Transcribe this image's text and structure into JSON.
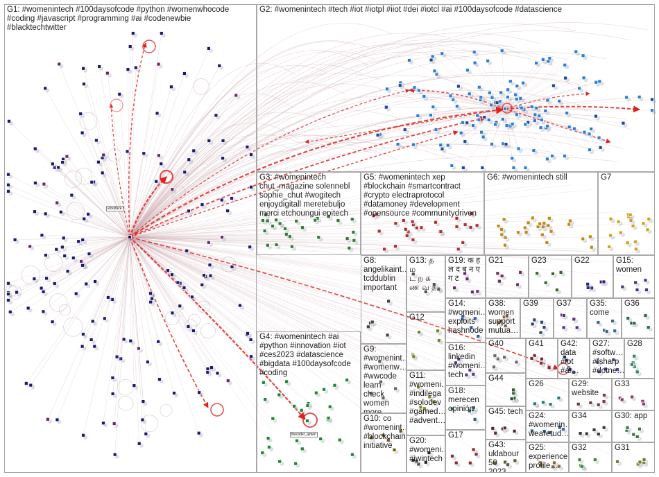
{
  "groups": [
    {
      "id": "G1",
      "label": "G1: #womenintech #100daysofcode #python #womenwhocode\n#coding #javascript #programming #ai #codenewbie\n#blacktechtwitter",
      "color": "#1a1a6e"
    },
    {
      "id": "G2",
      "label": "G2: #womenintech #tech #iot #iotpl #iiot #dei #iotcl #ai #100daysofcode #datascience",
      "color": "#2a7fd4"
    },
    {
      "id": "G3",
      "label": "G3: #womenintech\nchut_magazine solennebl\nsophie_chut #wogitech\nenjoydigitall meretebuljo\nmerci etchoungui epitech",
      "color": "#2e7d32"
    },
    {
      "id": "G4",
      "label": "G4: #womenintech #ai\n#python #innovation #iot\n#ces2023 #datascience\n#bigdata #100daysofcode\n#coding",
      "color": "#1b8a2e"
    },
    {
      "id": "G5",
      "label": "G5: #womenintech xep\n#blockchain #smartcontract\n#crypto electraprotocol\n#datamoney #development\n#opensource #communitydriven",
      "color": "#b03030"
    },
    {
      "id": "G6",
      "label": "G6: #womenintech still",
      "color": "#c08a10"
    },
    {
      "id": "G7",
      "label": "G7",
      "color": "#d4a017"
    },
    {
      "id": "G8",
      "label": "G8:\nangelikaint…\ntcddublin\nimportant",
      "color": "#444444"
    },
    {
      "id": "G9",
      "label": "G9:\n#womenint…\n#womenw…\n#wwcode\nlearn check\nwomen\nmore 2023…",
      "color": "#666666"
    },
    {
      "id": "G10",
      "label": "G10: co\n#womenint…\n#blockchain\ninitiative",
      "color": "#7a5a10"
    },
    {
      "id": "G11",
      "label": "G11:\n#womeni…\n#indilega\n#solodev\n#gamed…\n#advent…",
      "color": "#8a8a20"
    },
    {
      "id": "G12",
      "label": "G12",
      "color": "#6a8a20"
    },
    {
      "id": "G13",
      "label": "G13: த ம\nட ற க\nண வ த",
      "color": "#555555"
    },
    {
      "id": "G14",
      "label": "G14:\n#womeni…\nexploits\nhashnode",
      "color": "#2a5a9a"
    },
    {
      "id": "G15",
      "label": "G15:\nwomen",
      "color": "#3a3a8a"
    },
    {
      "id": "G16",
      "label": "G16:\nlinkedin\n#womeni…\ntech",
      "color": "#5a3a8a"
    },
    {
      "id": "G17",
      "label": "G17",
      "color": "#8a2a2a"
    },
    {
      "id": "G18",
      "label": "G18:\nmerecen\nopinión",
      "color": "#2a6a6a"
    },
    {
      "id": "G19",
      "label": "G19: क ह\nल द ब न ए\nग ट",
      "color": "#6a2a6a"
    },
    {
      "id": "G20",
      "label": "G20:\n#womeni…\n#iwintech",
      "color": "#2a2a2a"
    },
    {
      "id": "G21",
      "label": "G21",
      "color": "#7a2a5a"
    },
    {
      "id": "G22",
      "label": "G22",
      "color": "#2a2a7a"
    },
    {
      "id": "G23",
      "label": "G23",
      "color": "#3a6a2a"
    },
    {
      "id": "G24",
      "label": "G24:\n#womenin…\nwearetud…",
      "color": "#2a5a8a"
    },
    {
      "id": "G25",
      "label": "G25:\nexperience\nprofile…",
      "color": "#8a6a2a"
    },
    {
      "id": "G26",
      "label": "G26",
      "color": "#2a7a7a"
    },
    {
      "id": "G27",
      "label": "G27:\n#softw…\n#fsharp\n#dotne…",
      "color": "#4a4a9a"
    },
    {
      "id": "G28",
      "label": "G28",
      "color": "#2a8a5a"
    },
    {
      "id": "G29",
      "label": "G29:\nwebsite",
      "color": "#7a3a3a"
    },
    {
      "id": "G30",
      "label": "G30: app",
      "color": "#3a7a3a"
    },
    {
      "id": "G31",
      "label": "G31",
      "color": "#7a7a2a"
    },
    {
      "id": "G32",
      "label": "G32",
      "color": "#3a8a3a"
    },
    {
      "id": "G33",
      "label": "G33",
      "color": "#8a3a6a"
    },
    {
      "id": "G34",
      "label": "G34",
      "color": "#3a3a3a"
    },
    {
      "id": "G35",
      "label": "G35:\ncome",
      "color": "#3a6a8a"
    },
    {
      "id": "G36",
      "label": "G36",
      "color": "#2a6a4a"
    },
    {
      "id": "G37",
      "label": "G37",
      "color": "#5a2a8a"
    },
    {
      "id": "G38",
      "label": "G38:\nwomen\nsupport\nmutua…",
      "color": "#8a5a2a"
    },
    {
      "id": "G39",
      "label": "G39",
      "color": "#2a4a6a"
    },
    {
      "id": "G40",
      "label": "G40",
      "color": "#6a6a6a"
    },
    {
      "id": "G41",
      "label": "G41",
      "color": "#7a2a2a"
    },
    {
      "id": "G42",
      "label": "G42:\ndata #iot\n#ai…",
      "color": "#2a2a6a"
    },
    {
      "id": "G43",
      "label": "G43:\nuklabour\n50 2023…",
      "color": "#5a5a2a"
    },
    {
      "id": "G44",
      "label": "G44",
      "color": "#2a5a2a"
    },
    {
      "id": "G45",
      "label": "G45: tech",
      "color": "#5a2a2a"
    }
  ],
  "hubs": {
    "g1_label": "vicksface",
    "g4_label": "thecoder_aimen"
  },
  "colors": {
    "edge": "#c9a7ad",
    "edge_strong": "#e02020",
    "border": "#a8a8a8"
  }
}
